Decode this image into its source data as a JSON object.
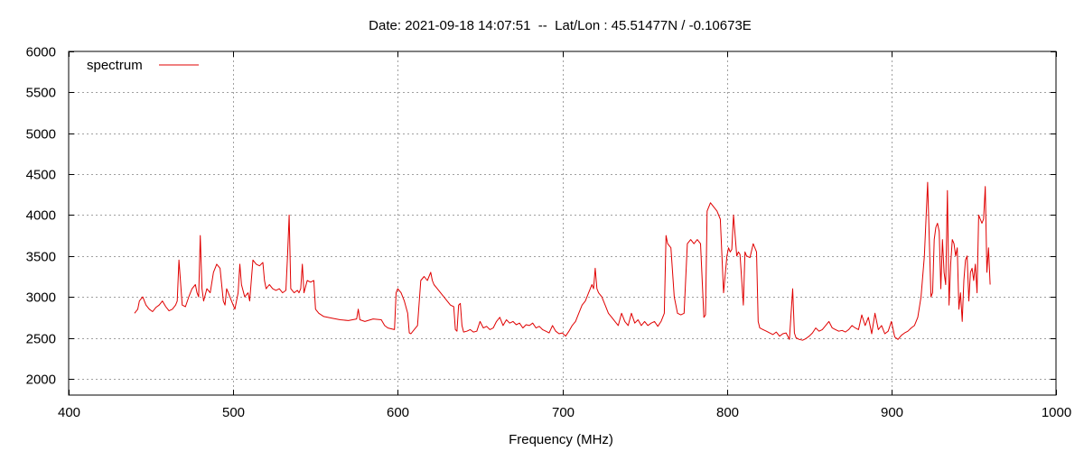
{
  "chart_data": {
    "type": "line",
    "title": "Date: 2021-09-18 14:07:51  --  Lat/Lon : 45.51477N / -0.10673E",
    "xlabel": "Frequency (MHz)",
    "ylabel": "",
    "xlim": [
      400,
      1000
    ],
    "ylim": [
      1800,
      6000
    ],
    "xticks": [
      400,
      500,
      600,
      700,
      800,
      900,
      1000
    ],
    "yticks": [
      2000,
      2500,
      3000,
      3500,
      4000,
      4500,
      5000,
      5500,
      6000
    ],
    "grid": true,
    "legend_position": "top-left",
    "series": [
      {
        "name": "spectrum",
        "color": "#e00000",
        "x": [
          440,
          442,
          443,
          445,
          447,
          449,
          451,
          453,
          455,
          457,
          459,
          461,
          463,
          465,
          466,
          467,
          469,
          471,
          473,
          475,
          477,
          478,
          479,
          480,
          481,
          482,
          484,
          486,
          488,
          490,
          492,
          494,
          495,
          496,
          497,
          499,
          501,
          503,
          504,
          505,
          507,
          509,
          510,
          511,
          512,
          514,
          516,
          518,
          519,
          520,
          522,
          524,
          526,
          528,
          530,
          532,
          533,
          534,
          535,
          537,
          539,
          540,
          541,
          542,
          543,
          545,
          547,
          549,
          550,
          552,
          555,
          560,
          565,
          570,
          575,
          576,
          577,
          580,
          585,
          590,
          592,
          594,
          596,
          598,
          599,
          600,
          602,
          604,
          606,
          607,
          608,
          610,
          612,
          614,
          616,
          618,
          620,
          621,
          622,
          624,
          626,
          628,
          630,
          632,
          634,
          635,
          636,
          637,
          638,
          639,
          640,
          642,
          644,
          646,
          648,
          650,
          652,
          654,
          656,
          658,
          660,
          662,
          664,
          666,
          668,
          670,
          672,
          674,
          676,
          678,
          680,
          682,
          684,
          686,
          688,
          690,
          692,
          694,
          696,
          698,
          700,
          702,
          704,
          706,
          708,
          710,
          712,
          714,
          716,
          718,
          719,
          720,
          721,
          722,
          724,
          726,
          728,
          730,
          732,
          734,
          736,
          738,
          740,
          742,
          744,
          746,
          748,
          750,
          752,
          754,
          756,
          758,
          760,
          762,
          763,
          764,
          766,
          768,
          770,
          772,
          773,
          774,
          776,
          778,
          780,
          782,
          784,
          786,
          787,
          788,
          790,
          792,
          794,
          796,
          798,
          800,
          801,
          802,
          803,
          804,
          806,
          807,
          808,
          810,
          811,
          812,
          814,
          816,
          818,
          819,
          820,
          822,
          824,
          826,
          828,
          830,
          832,
          834,
          836,
          838,
          840,
          841,
          842,
          844,
          846,
          848,
          850,
          852,
          854,
          856,
          858,
          860,
          862,
          864,
          866,
          868,
          870,
          872,
          874,
          876,
          878,
          880,
          882,
          884,
          886,
          888,
          890,
          892,
          894,
          896,
          898,
          900,
          902,
          904,
          906,
          908,
          910,
          912,
          914,
          916,
          918,
          920,
          922,
          924,
          925,
          926,
          927,
          928,
          929,
          930,
          931,
          932,
          933,
          934,
          935,
          936,
          937,
          938,
          939,
          940,
          941,
          942,
          943,
          944,
          945,
          946,
          947,
          948,
          949,
          950,
          951,
          952,
          953,
          954,
          955,
          956,
          957,
          958,
          959,
          960
        ],
        "values": [
          2800,
          2850,
          2950,
          3000,
          2900,
          2850,
          2820,
          2870,
          2900,
          2950,
          2880,
          2830,
          2850,
          2900,
          2950,
          3450,
          2900,
          2880,
          3000,
          3100,
          3150,
          3050,
          3000,
          3750,
          3100,
          2950,
          3100,
          3050,
          3300,
          3400,
          3350,
          2950,
          2900,
          3100,
          3050,
          2950,
          2850,
          3050,
          3400,
          3150,
          3000,
          3050,
          2950,
          3200,
          3450,
          3400,
          3380,
          3420,
          3200,
          3100,
          3150,
          3100,
          3080,
          3100,
          3050,
          3080,
          3500,
          4000,
          3100,
          3050,
          3080,
          3050,
          3100,
          3400,
          3050,
          3200,
          3180,
          3200,
          2850,
          2800,
          2760,
          2740,
          2720,
          2710,
          2730,
          2850,
          2720,
          2700,
          2730,
          2720,
          2650,
          2620,
          2610,
          2600,
          3050,
          3100,
          3050,
          2950,
          2800,
          2560,
          2550,
          2600,
          2650,
          3200,
          3250,
          3200,
          3300,
          3200,
          3150,
          3100,
          3050,
          3000,
          2950,
          2900,
          2880,
          2600,
          2580,
          2900,
          2920,
          2650,
          2570,
          2580,
          2600,
          2570,
          2580,
          2700,
          2620,
          2640,
          2600,
          2620,
          2700,
          2750,
          2650,
          2720,
          2680,
          2700,
          2660,
          2680,
          2620,
          2660,
          2650,
          2680,
          2620,
          2640,
          2600,
          2580,
          2560,
          2650,
          2580,
          2550,
          2560,
          2520,
          2580,
          2650,
          2700,
          2800,
          2900,
          2950,
          3050,
          3150,
          3100,
          3350,
          3100,
          3050,
          3000,
          2900,
          2800,
          2750,
          2700,
          2650,
          2800,
          2700,
          2650,
          2800,
          2680,
          2720,
          2650,
          2700,
          2650,
          2680,
          2700,
          2640,
          2700,
          2800,
          3750,
          3650,
          3600,
          3000,
          2800,
          2780,
          2790,
          2800,
          3650,
          3700,
          3650,
          3700,
          3650,
          2750,
          2780,
          4050,
          4150,
          4100,
          4050,
          3950,
          3050,
          3500,
          3600,
          3550,
          3580,
          4000,
          3500,
          3550,
          3520,
          2900,
          3550,
          3500,
          3480,
          3650,
          3550,
          2700,
          2620,
          2600,
          2580,
          2560,
          2540,
          2570,
          2520,
          2550,
          2560,
          2480,
          3100,
          2560,
          2500,
          2480,
          2470,
          2490,
          2520,
          2560,
          2620,
          2580,
          2600,
          2650,
          2700,
          2620,
          2600,
          2580,
          2590,
          2570,
          2600,
          2650,
          2620,
          2600,
          2780,
          2650,
          2750,
          2550,
          2800,
          2600,
          2650,
          2550,
          2580,
          2700,
          2510,
          2480,
          2530,
          2560,
          2580,
          2620,
          2650,
          2750,
          3000,
          3500,
          4400,
          3000,
          3050,
          3700,
          3850,
          3900,
          3800,
          3100,
          3700,
          3300,
          3150,
          4300,
          2900,
          3400,
          3700,
          3650,
          3500,
          3600,
          2850,
          3050,
          2700,
          3200,
          3450,
          3500,
          2950,
          3300,
          3350,
          3200,
          3400,
          3050,
          4000,
          3950,
          3900,
          3950,
          4350,
          3300,
          3600,
          3150
        ]
      }
    ]
  }
}
